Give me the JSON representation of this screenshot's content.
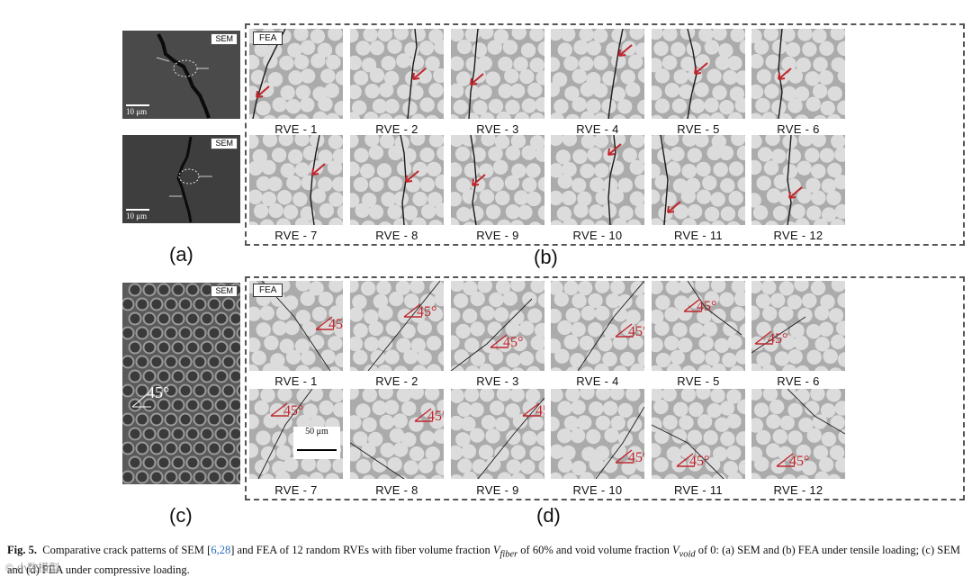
{
  "sem_tag": "SEM",
  "fea_tag": "FEA",
  "scale_10um": "10 μm",
  "scale_50um": "50 μm",
  "angle": "45°",
  "panels": {
    "a": "(a)",
    "b": "(b)",
    "c": "(c)",
    "d": "(d)"
  },
  "rve_labels": [
    "RVE - 1",
    "RVE - 2",
    "RVE - 3",
    "RVE - 4",
    "RVE - 5",
    "RVE - 6",
    "RVE - 7",
    "RVE - 8",
    "RVE - 9",
    "RVE - 10",
    "RVE - 11",
    "RVE - 12"
  ],
  "caption": {
    "fig": "Fig. 5.",
    "text1": "Comparative crack patterns of SEM [",
    "refs": "6,28",
    "text2": "] and FEA of 12 random RVEs with fiber volume fraction ",
    "vfiber": "V",
    "vfiber_sub": "fiber",
    "text3": " of 60% and void volume fraction ",
    "vvoid": "V",
    "vvoid_sub": "void",
    "text4": " of 0: (a) SEM and (b) FEA under tensile loading; (c) SEM and (d) FEA under compressive loading."
  },
  "watermark": "© 小数模型"
}
